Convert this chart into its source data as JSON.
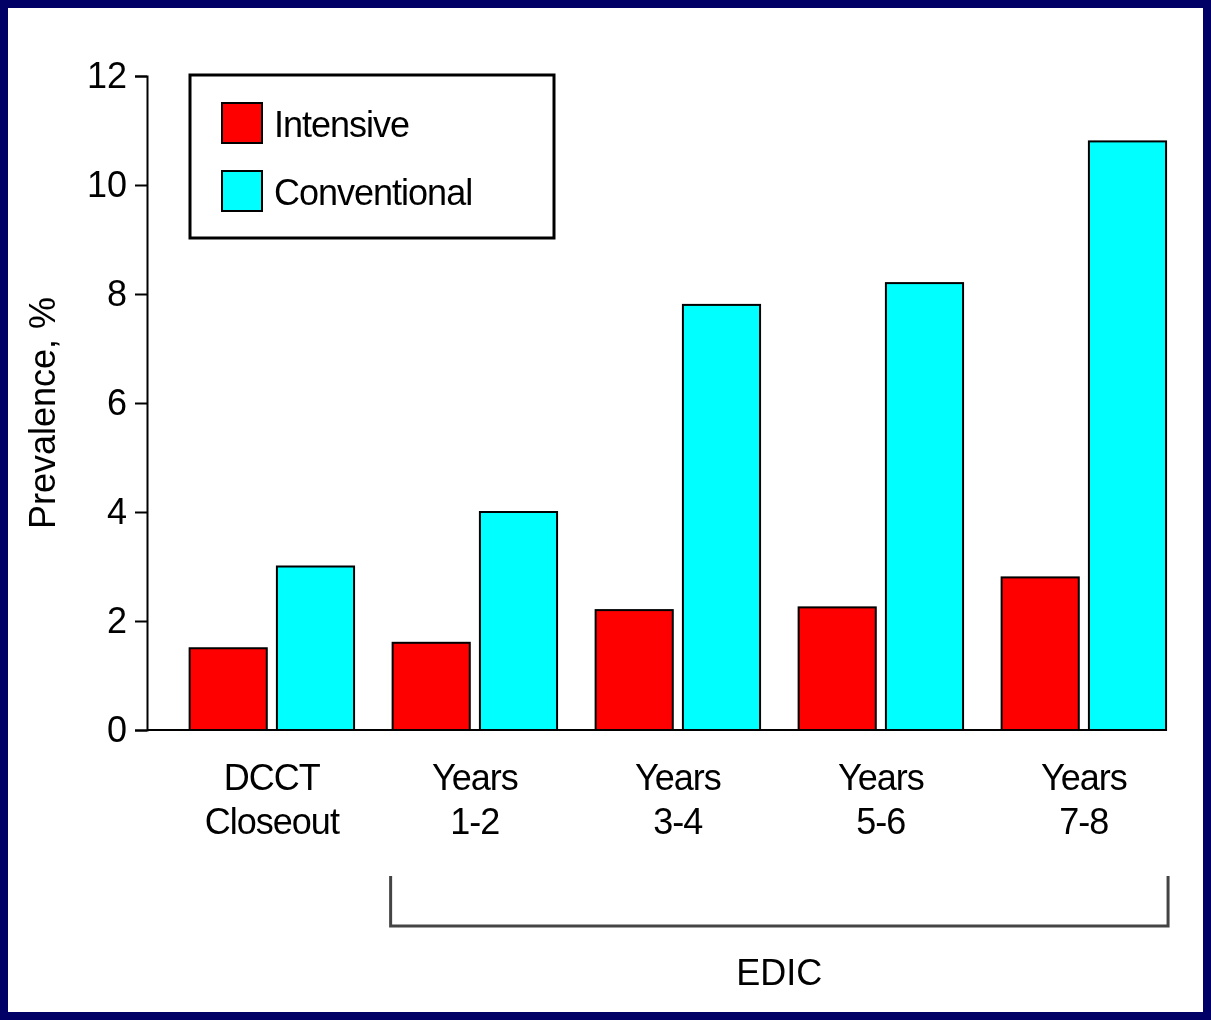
{
  "chart_data": {
    "type": "bar",
    "ylabel": "Prevalence, %",
    "categories": [
      "DCCT Closeout",
      "Years 1-2",
      "Years 3-4",
      "Years 5-6",
      "Years 7-8"
    ],
    "series": [
      {
        "name": "Intensive",
        "color": "#ff0000",
        "values": [
          1.5,
          1.6,
          2.2,
          2.25,
          2.8
        ]
      },
      {
        "name": "Conventional",
        "color": "#00ffff",
        "values": [
          3.0,
          4.0,
          7.8,
          8.2,
          10.8
        ]
      }
    ],
    "ylim": [
      0,
      12
    ],
    "yticks": [
      0,
      2,
      4,
      6,
      8,
      10,
      12
    ],
    "grid": false,
    "legend": "top left",
    "annotations": [
      "EDIC"
    ]
  }
}
